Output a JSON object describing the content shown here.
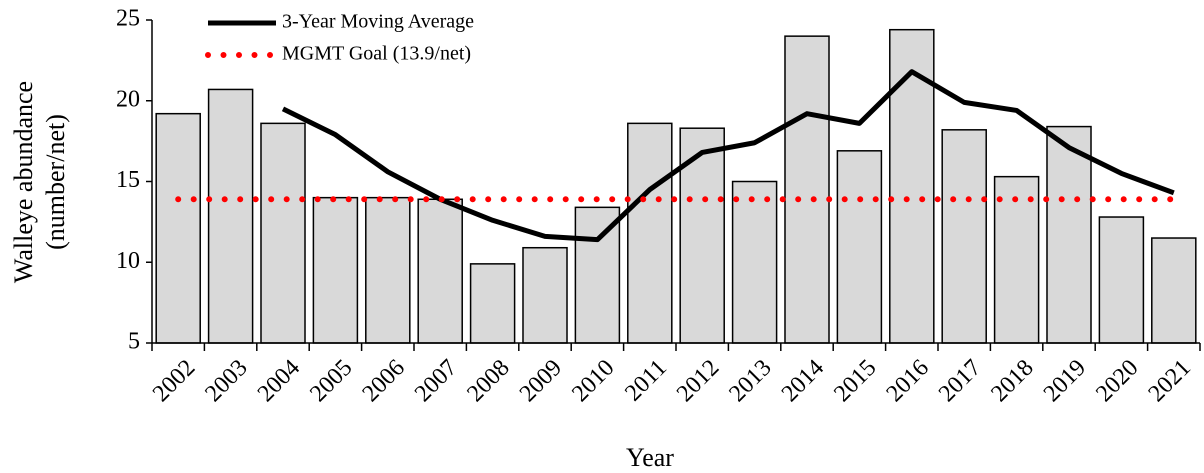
{
  "chart_data": {
    "type": "bar",
    "x_label": "Year",
    "y_label": [
      "Walleye abundance",
      "(number/net)"
    ],
    "categories": [
      "2002",
      "2003",
      "2004",
      "2005",
      "2006",
      "2007",
      "2008",
      "2009",
      "2010",
      "2011",
      "2012",
      "2013",
      "2014",
      "2015",
      "2016",
      "2017",
      "2018",
      "2019",
      "2020",
      "2021"
    ],
    "values": [
      19.2,
      20.7,
      18.6,
      14.0,
      14.0,
      13.9,
      9.9,
      10.9,
      13.4,
      18.6,
      18.3,
      15.0,
      24.0,
      16.9,
      24.4,
      18.2,
      15.3,
      18.4,
      12.8,
      11.5
    ],
    "color": "#d9d9d9",
    "series": [
      {
        "name": "3-Year Moving Average",
        "color": "#000000",
        "style": "solid",
        "values": [
          null,
          null,
          19.5,
          17.9,
          15.6,
          13.9,
          12.6,
          11.6,
          11.4,
          14.5,
          16.8,
          17.4,
          19.2,
          18.6,
          21.8,
          19.9,
          19.4,
          17.1,
          15.5,
          14.3
        ]
      },
      {
        "name": "MGMT Goal (13.9/net)",
        "color": "#ff0000",
        "style": "dotted",
        "values": [
          13.9,
          13.9,
          13.9,
          13.9,
          13.9,
          13.9,
          13.9,
          13.9,
          13.9,
          13.9,
          13.9,
          13.9,
          13.9,
          13.9,
          13.9,
          13.9,
          13.9,
          13.9,
          13.9,
          13.9
        ]
      }
    ],
    "ylim": [
      5,
      25
    ],
    "yticks": [
      5,
      10,
      15,
      20,
      25
    ],
    "grid": false
  }
}
